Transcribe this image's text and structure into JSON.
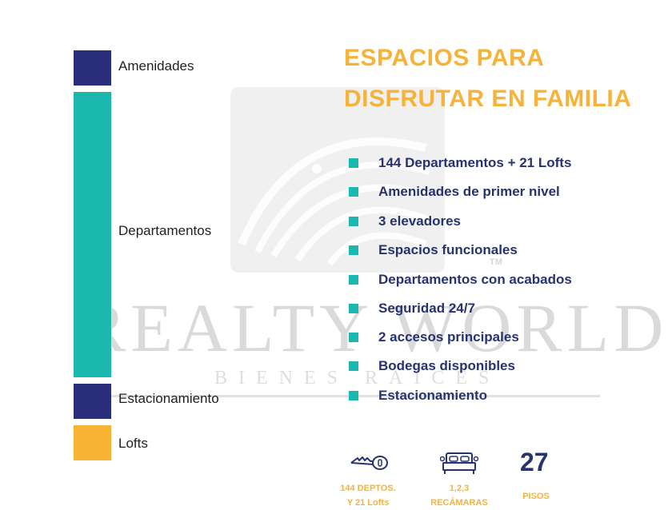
{
  "colors": {
    "navy": "#2a2e7a",
    "teal": "#1bb8ad",
    "gold": "#f7b334",
    "title": "#f5b33b",
    "feature_text": "#27336f"
  },
  "legend": [
    {
      "label": "Amenidades",
      "color": "#2a2e7a"
    },
    {
      "label": "Departamentos",
      "color": "#1bb8ad"
    },
    {
      "label": "Estacionamiento",
      "color": "#2a2e7a"
    },
    {
      "label": "Lofts",
      "color": "#f7b334"
    }
  ],
  "title": {
    "line1": "ESPACIOS PARA",
    "line2": "DISFRUTAR EN FAMILIA"
  },
  "features": [
    "144 Departamentos + 21 Lofts",
    "Amenidades de primer nivel",
    "3 elevadores",
    "Espacios funcionales",
    "Departamentos con acabados",
    "Seguridad 24/7",
    "2 accesos principales",
    "Bodegas disponibles",
    "Estacionamiento"
  ],
  "watermark": {
    "brand": "REALTY WORLD",
    "sub": "BIENES RAICES",
    "tm": "TM"
  },
  "stats": {
    "deptos_line1": "144 DEPTOS.",
    "deptos_line2": "Y 21 Lofts",
    "recamaras_line1": "1,2,3",
    "recamaras_line2": "RECÁMARAS",
    "pisos_number": "27",
    "pisos_label": "PISOS",
    "icons": [
      "key-icon",
      "bed-icon"
    ]
  }
}
